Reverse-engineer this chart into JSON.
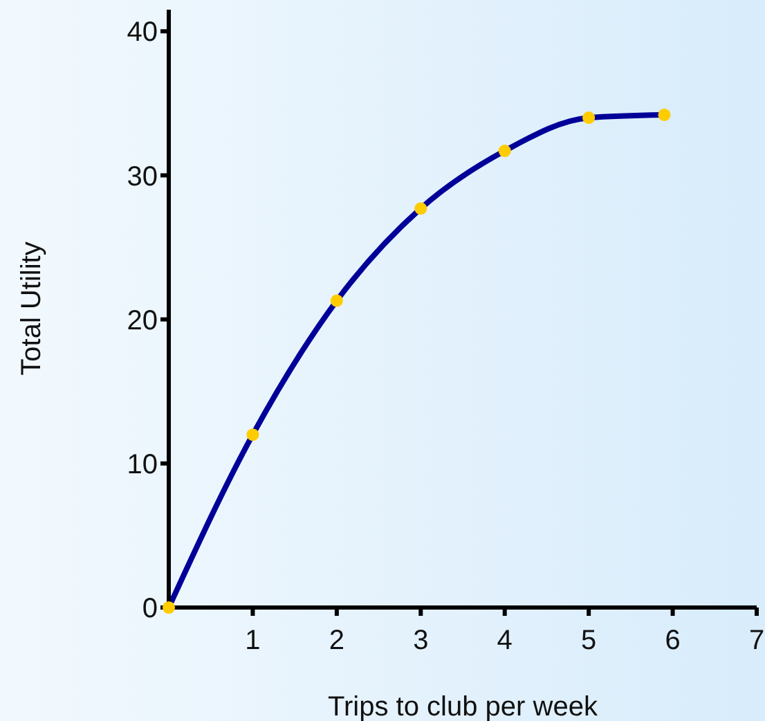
{
  "chart_data": {
    "type": "line",
    "xlabel": "Trips to club per week",
    "ylabel": "Total Utility",
    "x": [
      0,
      1,
      2,
      3,
      4,
      5,
      5.9
    ],
    "xlim": [
      0,
      7
    ],
    "xticks": [
      1,
      2,
      3,
      4,
      5,
      6,
      7
    ],
    "ylim": [
      0,
      41.5
    ],
    "yticks": [
      0,
      10,
      20,
      30,
      40
    ],
    "grid": false,
    "legend": false,
    "series": [
      {
        "color": "#000099",
        "marker": "none",
        "values": [
          0,
          12,
          21.3,
          27.7,
          31.7,
          34,
          34.2
        ]
      },
      {
        "type": "scatter",
        "color": "#ffcc00",
        "marker": "circle",
        "values": [
          0,
          12,
          21.3,
          27.7,
          31.7,
          34,
          34.2
        ]
      }
    ]
  }
}
